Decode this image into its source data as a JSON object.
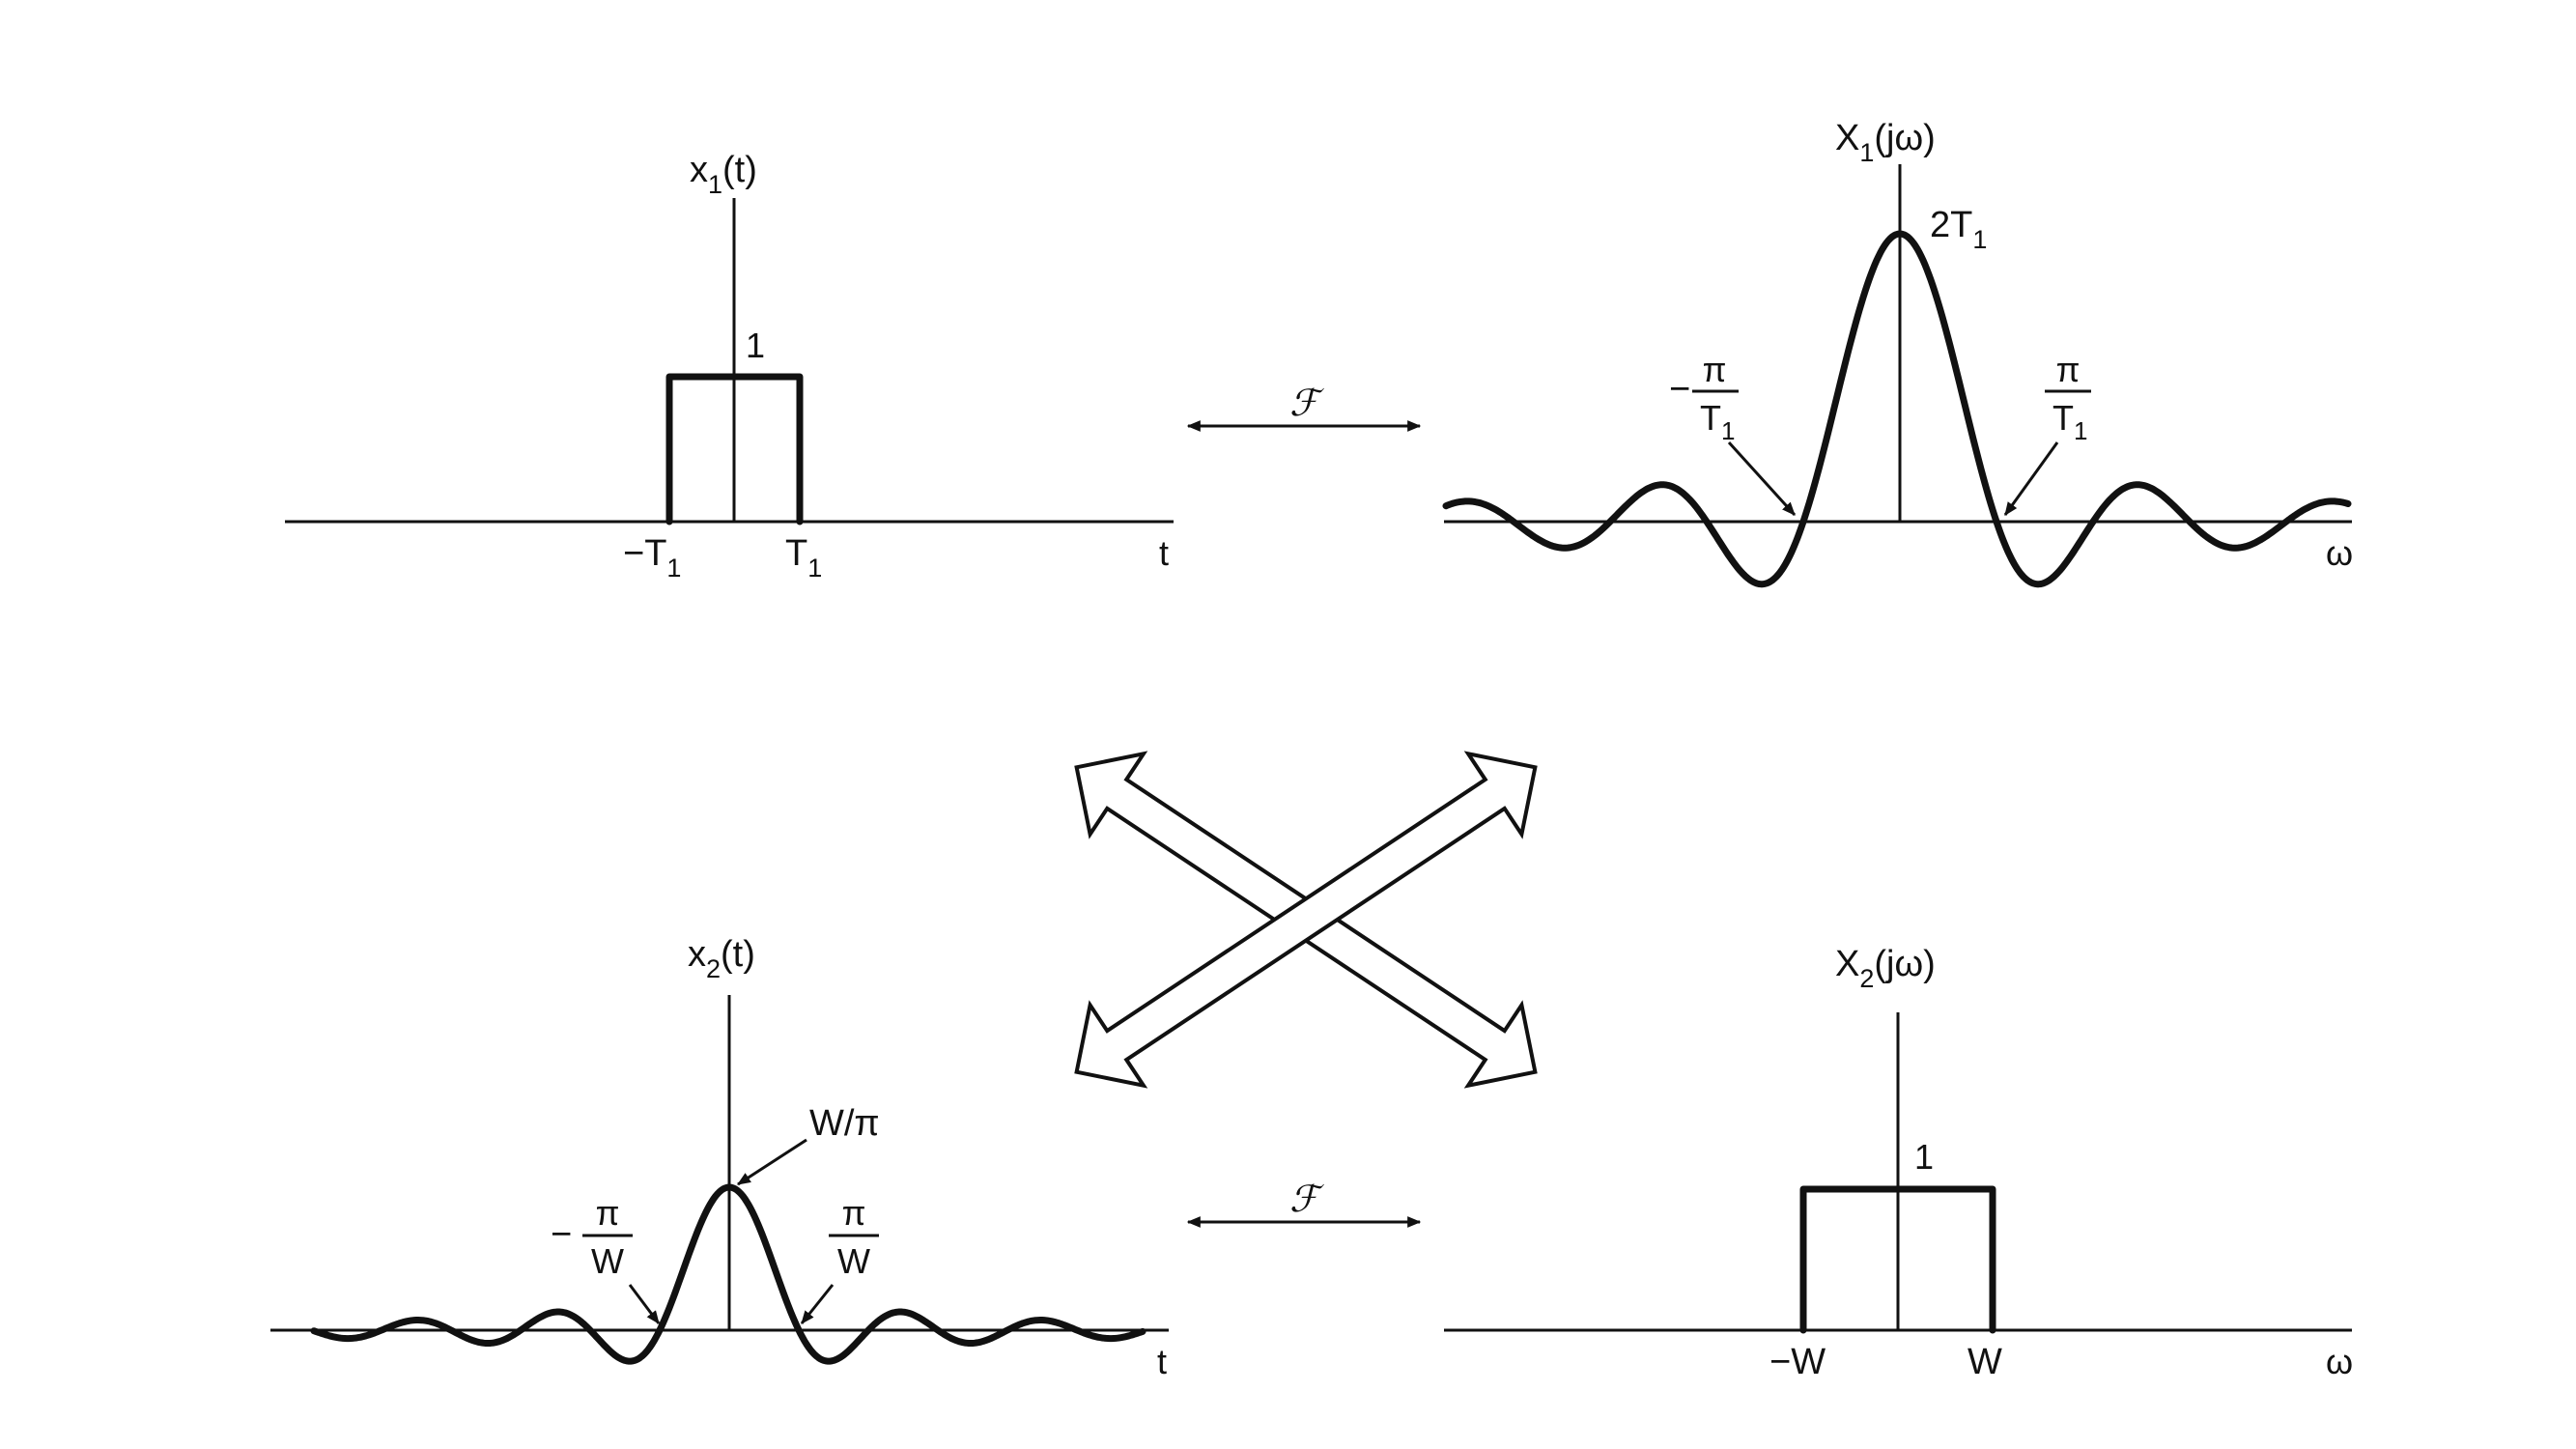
{
  "fourier_symbol": "ℱ",
  "top_left": {
    "func_label": {
      "main": "x",
      "sub": "1",
      "rest": "(t)"
    },
    "height_label": "1",
    "tick_neg": {
      "main": "−T",
      "sub": "1"
    },
    "tick_pos": {
      "main": "T",
      "sub": "1"
    },
    "axis_var": "t",
    "amplitude": 1
  },
  "top_right": {
    "func_label": {
      "main": "X",
      "sub": "1",
      "rest": "(jω)"
    },
    "peak_label": {
      "main": "2T",
      "sub": "1"
    },
    "zero_neg": {
      "sign": "−",
      "num": "π",
      "den_main": "T",
      "den_sub": "1"
    },
    "zero_pos": {
      "num": "π",
      "den_main": "T",
      "den_sub": "1"
    },
    "axis_var": "ω"
  },
  "bottom_left": {
    "func_label": {
      "main": "x",
      "sub": "2",
      "rest": "(t)"
    },
    "peak_label": "W/π",
    "zero_neg": {
      "sign": "−",
      "num": "π",
      "den": "W"
    },
    "zero_pos": {
      "num": "π",
      "den": "W"
    },
    "axis_var": "t"
  },
  "bottom_right": {
    "func_label": {
      "main": "X",
      "sub": "2",
      "rest": "(jω)"
    },
    "height_label": "1",
    "tick_neg": "−W",
    "tick_pos": "W",
    "axis_var": "ω",
    "amplitude": 1
  }
}
